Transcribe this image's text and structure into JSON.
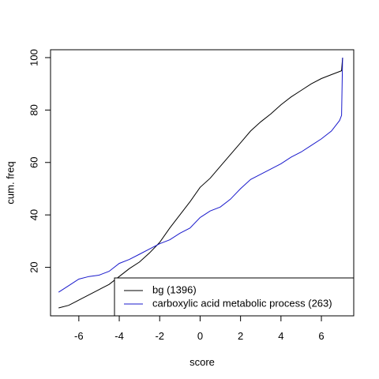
{
  "chart_data": {
    "type": "line",
    "xlabel": "score",
    "ylabel": "cum. freq",
    "xlim": [
      -7.4,
      7.6
    ],
    "ylim": [
      1.5,
      103
    ],
    "x_ticks": [
      -6,
      -4,
      -2,
      0,
      2,
      4,
      6
    ],
    "x_tick_labels": [
      "-6",
      "-4",
      "-2",
      "0",
      "2",
      "4",
      "6"
    ],
    "y_ticks": [
      20,
      40,
      60,
      80,
      100
    ],
    "y_tick_labels": [
      "20",
      "40",
      "60",
      "80",
      "100"
    ],
    "legend_position": "bottom-right",
    "series": [
      {
        "name": "bg (1396)",
        "color": "#000000",
        "x": [
          -7,
          -6.5,
          -6,
          -5.5,
          -5,
          -4.5,
          -4,
          -3.5,
          -3,
          -2.5,
          -2,
          -1.5,
          -1,
          -0.5,
          0,
          0.5,
          1,
          1.5,
          2,
          2.5,
          3,
          3.5,
          4,
          4.5,
          5,
          5.5,
          6,
          6.5,
          7,
          7.05
        ],
        "y": [
          4.5,
          5.5,
          7.5,
          9.5,
          11.5,
          13.5,
          16.5,
          19.5,
          22,
          25.5,
          29.5,
          35,
          40,
          45,
          50.5,
          54,
          58.5,
          63,
          67.5,
          72,
          75.5,
          78.5,
          82,
          85,
          87.5,
          90,
          92,
          93.5,
          95,
          100
        ]
      },
      {
        "name": "carboxylic acid metabolic process (263)",
        "color": "#1a1acc",
        "x": [
          -7,
          -6.5,
          -6,
          -5.5,
          -5,
          -4.5,
          -4,
          -3.5,
          -3,
          -2.5,
          -2,
          -1.5,
          -1,
          -0.5,
          0,
          0.5,
          1,
          1.5,
          2,
          2.5,
          3,
          3.5,
          4,
          4.5,
          5,
          5.5,
          6,
          6.5,
          6.9,
          7,
          7.05
        ],
        "y": [
          10.5,
          13,
          15.5,
          16.5,
          17,
          18.5,
          21.5,
          23,
          25,
          27,
          29,
          30.5,
          33,
          35,
          39,
          41.5,
          43,
          46,
          50,
          53.5,
          55.5,
          57.5,
          59.5,
          62,
          64,
          66.5,
          69,
          72,
          76,
          78,
          100
        ]
      }
    ]
  }
}
